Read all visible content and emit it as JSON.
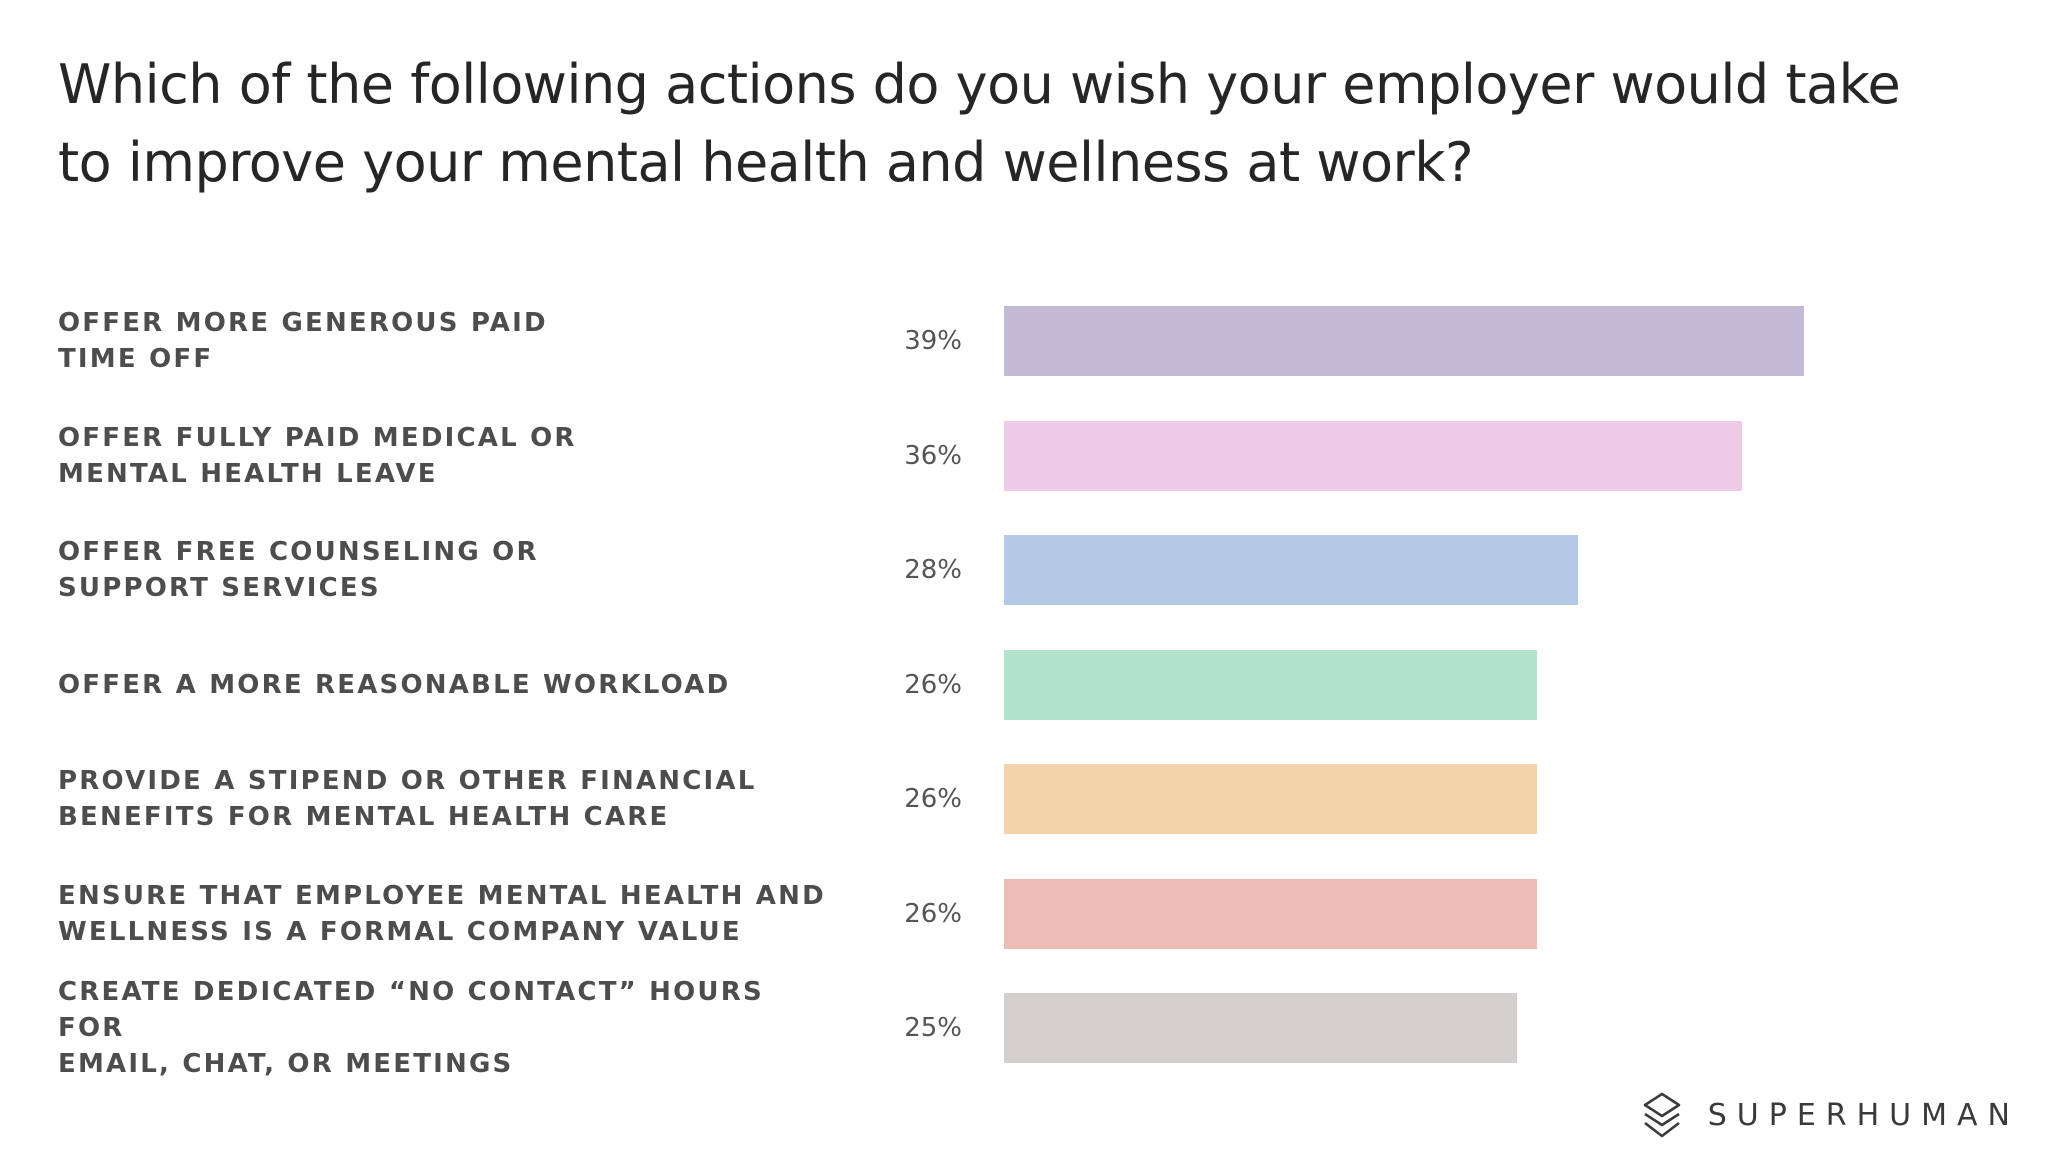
{
  "chart_data": {
    "type": "bar",
    "orientation": "horizontal",
    "title": "Which of the following actions do you wish your employer would take to improve your mental health and wellness at work?",
    "categories": [
      "OFFER MORE GENEROUS PAID TIME OFF",
      "OFFER FULLY PAID MEDICAL OR MENTAL HEALTH LEAVE",
      "OFFER FREE COUNSELING OR SUPPORT SERVICES",
      "OFFER A MORE REASONABLE WORKLOAD",
      "PROVIDE A STIPEND OR OTHER FINANCIAL BENEFITS FOR MENTAL HEALTH CARE",
      "ENSURE THAT EMPLOYEE MENTAL HEALTH AND WELLNESS IS A FORMAL COMPANY VALUE",
      "CREATE DEDICATED “NO CONTACT” HOURS FOR EMAIL, CHAT, OR MEETINGS"
    ],
    "label_lines": [
      [
        "OFFER MORE GENEROUS PAID",
        "TIME OFF"
      ],
      [
        "OFFER FULLY PAID MEDICAL OR",
        "MENTAL HEALTH LEAVE"
      ],
      [
        "OFFER FREE COUNSELING OR",
        "SUPPORT SERVICES"
      ],
      [
        "OFFER A MORE REASONABLE WORKLOAD"
      ],
      [
        "PROVIDE A STIPEND OR OTHER FINANCIAL",
        "BENEFITS FOR MENTAL HEALTH CARE"
      ],
      [
        "ENSURE THAT EMPLOYEE MENTAL HEALTH AND",
        "WELLNESS IS A FORMAL COMPANY VALUE"
      ],
      [
        "CREATE DEDICATED “NO CONTACT” HOURS FOR",
        "EMAIL, CHAT, OR MEETINGS"
      ]
    ],
    "values": [
      39,
      36,
      28,
      26,
      26,
      26,
      25
    ],
    "value_labels": [
      "39%",
      "36%",
      "28%",
      "26%",
      "26%",
      "26%",
      "25%"
    ],
    "unit": "%",
    "colors": [
      "#c3bad5",
      "#efcae8",
      "#b3c9e6",
      "#b3e3ca",
      "#f5d3aa",
      "#eebcb6",
      "#d4d0d0"
    ],
    "xlim": [
      0,
      50
    ],
    "xlabel": "",
    "ylabel": "",
    "grid": false,
    "legend": "none"
  },
  "brand": {
    "name": "SUPERHUMAN",
    "logo_icon": "superhuman-logo-icon"
  }
}
